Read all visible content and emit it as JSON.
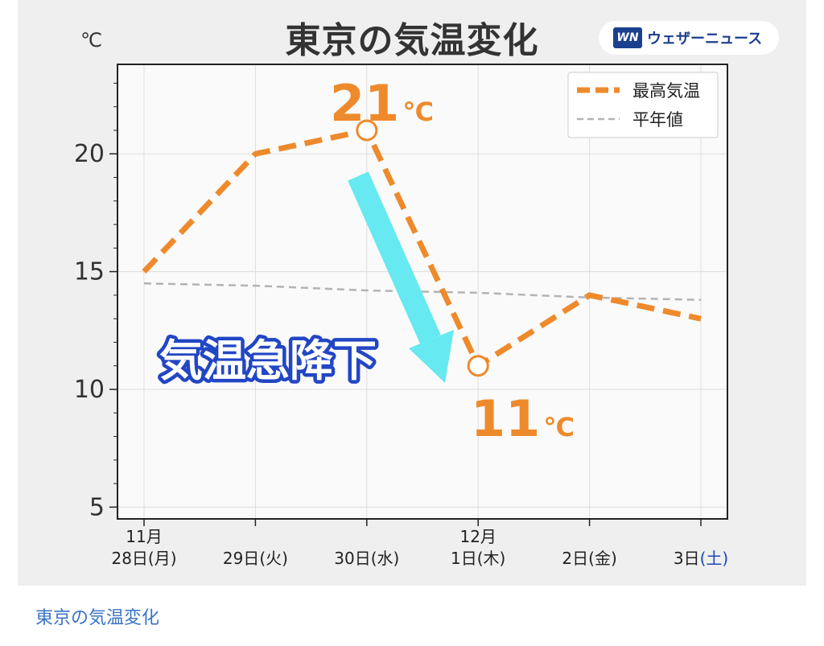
{
  "title": "東京の気温変化",
  "unit": "℃",
  "logo": {
    "badge": "WN",
    "text": "ウェザーニュース"
  },
  "annotation": {
    "text": "気温急降下",
    "arrow_color": "#66e9f0"
  },
  "callouts": [
    {
      "value": "21",
      "unit": "℃"
    },
    {
      "value": "11",
      "unit": "℃"
    }
  ],
  "colors": {
    "max_temp": "#ee8a2c",
    "normal": "#b3b3b3",
    "sat": "#1d48b5"
  },
  "caption": "東京の気温変化",
  "chart_data": {
    "type": "line",
    "title": "東京の気温変化",
    "ylabel": "℃",
    "ylim": [
      4.5,
      23.8
    ],
    "yticks": [
      5,
      10,
      15,
      20
    ],
    "grid": true,
    "legend": "top-right",
    "x": [
      {
        "top": "11月",
        "day": "28日",
        "dow": "(月)"
      },
      {
        "top": "",
        "day": "29日",
        "dow": "(火)"
      },
      {
        "top": "",
        "day": "30日",
        "dow": "(水)"
      },
      {
        "top": "12月",
        "day": "1日",
        "dow": "(木)"
      },
      {
        "top": "",
        "day": "2日",
        "dow": "(金)"
      },
      {
        "top": "",
        "day": "3日",
        "dow": "(土)"
      }
    ],
    "series": [
      {
        "name": "最高気温",
        "values": [
          15,
          20,
          21,
          11,
          14,
          13
        ]
      },
      {
        "name": "平年値",
        "values": [
          14.5,
          14.4,
          14.2,
          14.1,
          13.9,
          13.8
        ]
      }
    ]
  }
}
